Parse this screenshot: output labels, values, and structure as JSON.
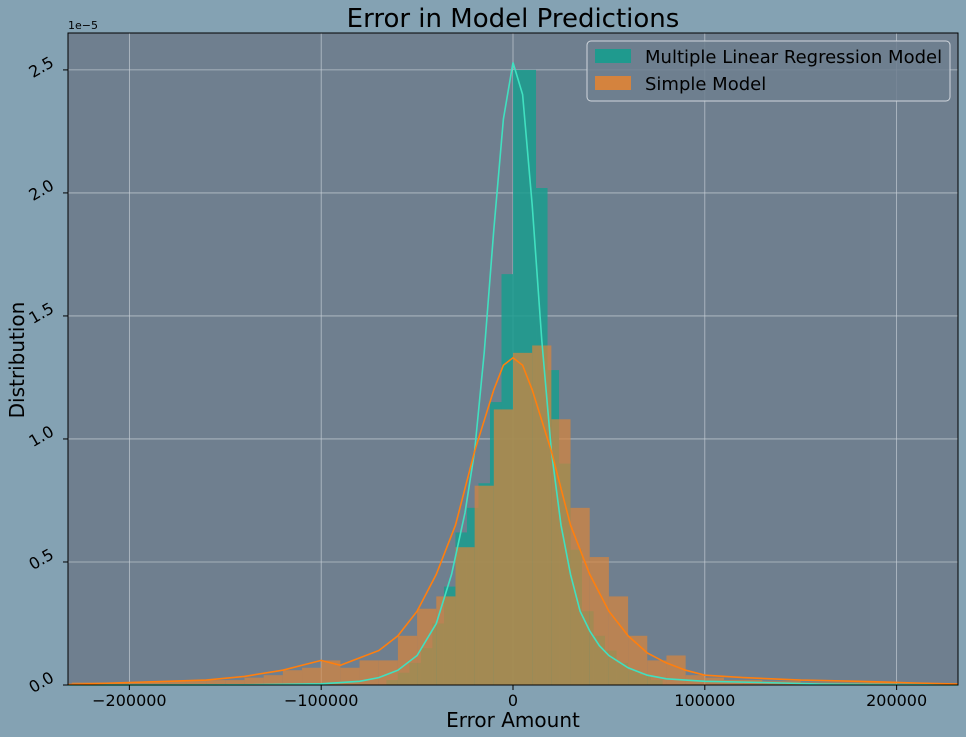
{
  "colors": {
    "figure_bg": "#84a2b3",
    "axes_bg": "#6f7f8f",
    "grid": "#c9d1d8",
    "mlr_hist": "#1a9c8e",
    "mlr_kde": "#40e0c0",
    "simple_hist": "#d9843a",
    "simple_kde": "#ff7f0e"
  },
  "chart_data": {
    "type": "histogram",
    "title": "Error in Model Predictions",
    "xlabel": "Error Amount",
    "ylabel": "Distribution",
    "y_scale_label": "1e−5",
    "xlim": [
      -232000,
      232000
    ],
    "ylim": [
      0,
      2.65
    ],
    "y_unit": "1e-5",
    "grid": true,
    "legend_position": "top-right",
    "x_ticks": [
      -200000,
      -100000,
      0,
      100000,
      200000
    ],
    "x_tick_labels": [
      "−200000",
      "−100000",
      "0",
      "100000",
      "200000"
    ],
    "y_ticks": [
      0,
      0.5,
      1.0,
      1.5,
      2.0,
      2.5
    ],
    "y_tick_labels": [
      "0.0",
      "0.5",
      "1.0",
      "1.5",
      "2.0",
      "2.5"
    ],
    "series": [
      {
        "name": "Multiple Linear Regression Model",
        "bin_width": 6000,
        "bins": [
          [
            -66000,
            0.02
          ],
          [
            -60000,
            0.05
          ],
          [
            -54000,
            0.09
          ],
          [
            -48000,
            0.15
          ],
          [
            -42000,
            0.25
          ],
          [
            -36000,
            0.4
          ],
          [
            -30000,
            0.62
          ],
          [
            -24000,
            0.72
          ],
          [
            -18000,
            0.82
          ],
          [
            -12000,
            1.15
          ],
          [
            -6000,
            1.67
          ],
          [
            0,
            2.5
          ],
          [
            6000,
            2.5
          ],
          [
            12000,
            2.02
          ],
          [
            18000,
            1.28
          ],
          [
            24000,
            0.9
          ],
          [
            30000,
            0.55
          ],
          [
            36000,
            0.3
          ],
          [
            42000,
            0.2
          ],
          [
            48000,
            0.14
          ],
          [
            54000,
            0.09
          ],
          [
            60000,
            0.06
          ],
          [
            66000,
            0.04
          ],
          [
            72000,
            0.02
          ]
        ],
        "kde": [
          [
            -232000,
            0.0
          ],
          [
            -140000,
            0.001
          ],
          [
            -100000,
            0.005
          ],
          [
            -80000,
            0.015
          ],
          [
            -70000,
            0.03
          ],
          [
            -60000,
            0.06
          ],
          [
            -50000,
            0.12
          ],
          [
            -40000,
            0.25
          ],
          [
            -32000,
            0.45
          ],
          [
            -25000,
            0.7
          ],
          [
            -20000,
            0.95
          ],
          [
            -15000,
            1.35
          ],
          [
            -10000,
            1.85
          ],
          [
            -5000,
            2.3
          ],
          [
            0,
            2.53
          ],
          [
            5000,
            2.4
          ],
          [
            10000,
            1.95
          ],
          [
            15000,
            1.4
          ],
          [
            20000,
            0.95
          ],
          [
            25000,
            0.65
          ],
          [
            30000,
            0.45
          ],
          [
            35000,
            0.3
          ],
          [
            40000,
            0.22
          ],
          [
            45000,
            0.16
          ],
          [
            50000,
            0.12
          ],
          [
            60000,
            0.07
          ],
          [
            70000,
            0.04
          ],
          [
            80000,
            0.025
          ],
          [
            100000,
            0.015
          ],
          [
            130000,
            0.01
          ],
          [
            160000,
            0.004
          ],
          [
            232000,
            0.0
          ]
        ]
      },
      {
        "name": "Simple Model",
        "bin_width": 10000,
        "bins": [
          [
            -230000,
            0.01
          ],
          [
            -220000,
            0.01
          ],
          [
            -210000,
            0.01
          ],
          [
            -200000,
            0.01
          ],
          [
            -190000,
            0.015
          ],
          [
            -180000,
            0.015
          ],
          [
            -170000,
            0.02
          ],
          [
            -160000,
            0.02
          ],
          [
            -150000,
            0.02
          ],
          [
            -140000,
            0.03
          ],
          [
            -130000,
            0.04
          ],
          [
            -120000,
            0.06
          ],
          [
            -110000,
            0.07
          ],
          [
            -100000,
            0.1
          ],
          [
            -90000,
            0.07
          ],
          [
            -80000,
            0.1
          ],
          [
            -70000,
            0.1
          ],
          [
            -60000,
            0.2
          ],
          [
            -50000,
            0.31
          ],
          [
            -40000,
            0.36
          ],
          [
            -30000,
            0.56
          ],
          [
            -20000,
            0.81
          ],
          [
            -10000,
            1.12
          ],
          [
            0,
            1.35
          ],
          [
            10000,
            1.38
          ],
          [
            20000,
            1.08
          ],
          [
            30000,
            0.72
          ],
          [
            40000,
            0.52
          ],
          [
            50000,
            0.36
          ],
          [
            60000,
            0.2
          ],
          [
            70000,
            0.1
          ],
          [
            80000,
            0.12
          ],
          [
            90000,
            0.04
          ],
          [
            100000,
            0.03
          ],
          [
            110000,
            0.02
          ],
          [
            120000,
            0.02
          ],
          [
            130000,
            0.015
          ],
          [
            140000,
            0.015
          ],
          [
            150000,
            0.01
          ],
          [
            160000,
            0.01
          ],
          [
            170000,
            0.01
          ],
          [
            180000,
            0.01
          ],
          [
            190000,
            0.01
          ],
          [
            200000,
            0.005
          ],
          [
            210000,
            0.005
          ]
        ],
        "kde": [
          [
            -232000,
            0.002
          ],
          [
            -200000,
            0.01
          ],
          [
            -180000,
            0.015
          ],
          [
            -160000,
            0.02
          ],
          [
            -140000,
            0.035
          ],
          [
            -120000,
            0.06
          ],
          [
            -100000,
            0.1
          ],
          [
            -90000,
            0.08
          ],
          [
            -80000,
            0.11
          ],
          [
            -70000,
            0.14
          ],
          [
            -60000,
            0.2
          ],
          [
            -50000,
            0.3
          ],
          [
            -40000,
            0.45
          ],
          [
            -30000,
            0.65
          ],
          [
            -20000,
            0.95
          ],
          [
            -10000,
            1.2
          ],
          [
            -5000,
            1.3
          ],
          [
            0,
            1.33
          ],
          [
            5000,
            1.3
          ],
          [
            10000,
            1.2
          ],
          [
            20000,
            0.95
          ],
          [
            30000,
            0.65
          ],
          [
            40000,
            0.45
          ],
          [
            50000,
            0.3
          ],
          [
            60000,
            0.2
          ],
          [
            70000,
            0.13
          ],
          [
            80000,
            0.09
          ],
          [
            90000,
            0.06
          ],
          [
            100000,
            0.04
          ],
          [
            120000,
            0.03
          ],
          [
            150000,
            0.02
          ],
          [
            180000,
            0.015
          ],
          [
            210000,
            0.008
          ],
          [
            232000,
            0.004
          ]
        ]
      }
    ]
  }
}
